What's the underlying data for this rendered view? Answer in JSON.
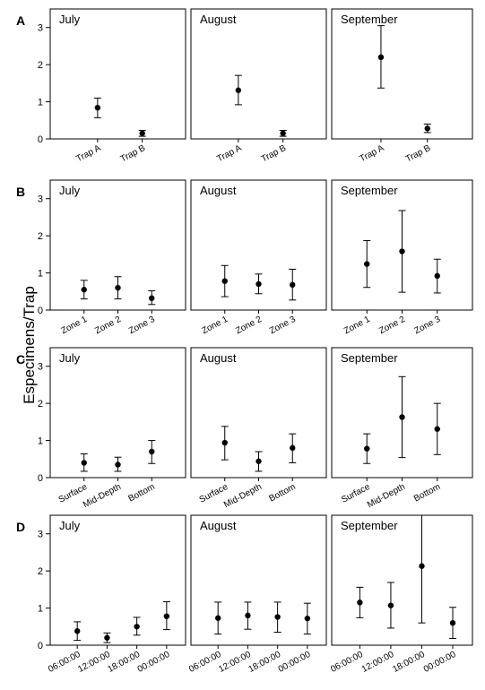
{
  "figure": {
    "ylabel": "Especimens/Trap"
  },
  "chart_data": [
    {
      "type": "scatter",
      "panel": "A",
      "ylim": [
        0,
        3.5
      ],
      "yticks": [
        0,
        1,
        2,
        3
      ],
      "subplots": [
        {
          "title": "July",
          "categories": [
            "Trap A",
            "Trap B"
          ],
          "mean": [
            0.84,
            0.15
          ],
          "lower": [
            0.57,
            0.07
          ],
          "upper": [
            1.1,
            0.23
          ]
        },
        {
          "title": "August",
          "categories": [
            "Trap A",
            "Trap B"
          ],
          "mean": [
            1.31,
            0.15
          ],
          "lower": [
            0.92,
            0.07
          ],
          "upper": [
            1.71,
            0.23
          ]
        },
        {
          "title": "September",
          "categories": [
            "Trap A",
            "Trap B"
          ],
          "mean": [
            2.2,
            0.28
          ],
          "lower": [
            1.37,
            0.17
          ],
          "upper": [
            3.05,
            0.4
          ]
        }
      ]
    },
    {
      "type": "scatter",
      "panel": "B",
      "ylim": [
        0,
        3.5
      ],
      "yticks": [
        0,
        1,
        2,
        3
      ],
      "subplots": [
        {
          "title": "July",
          "categories": [
            "Zone 1",
            "Zone 2",
            "Zone 3"
          ],
          "mean": [
            0.55,
            0.6,
            0.32
          ],
          "lower": [
            0.3,
            0.3,
            0.15
          ],
          "upper": [
            0.8,
            0.9,
            0.52
          ]
        },
        {
          "title": "August",
          "categories": [
            "Zone 1",
            "Zone 2",
            "Zone 3"
          ],
          "mean": [
            0.78,
            0.7,
            0.68
          ],
          "lower": [
            0.36,
            0.44,
            0.27
          ],
          "upper": [
            1.2,
            0.97,
            1.1
          ]
        },
        {
          "title": "September",
          "categories": [
            "Zone 1",
            "Zone 2",
            "Zone 3"
          ],
          "mean": [
            1.24,
            1.58,
            0.92
          ],
          "lower": [
            0.61,
            0.48,
            0.46
          ],
          "upper": [
            1.87,
            2.68,
            1.37
          ]
        }
      ]
    },
    {
      "type": "scatter",
      "panel": "C",
      "ylim": [
        0,
        3.5
      ],
      "yticks": [
        0,
        1,
        2,
        3
      ],
      "subplots": [
        {
          "title": "July",
          "categories": [
            "Surface",
            "Mid-Depth",
            "Bottom"
          ],
          "mean": [
            0.4,
            0.35,
            0.7
          ],
          "lower": [
            0.17,
            0.17,
            0.38
          ],
          "upper": [
            0.64,
            0.55,
            1.0
          ]
        },
        {
          "title": "August",
          "categories": [
            "Surface",
            "Mid-Depth",
            "Bottom"
          ],
          "mean": [
            0.94,
            0.44,
            0.8
          ],
          "lower": [
            0.48,
            0.17,
            0.4
          ],
          "upper": [
            1.38,
            0.7,
            1.18
          ]
        },
        {
          "title": "September",
          "categories": [
            "Surface",
            "Mid-Depth",
            "Bottom"
          ],
          "mean": [
            0.78,
            1.63,
            1.31
          ],
          "lower": [
            0.38,
            0.54,
            0.62
          ],
          "upper": [
            1.18,
            2.72,
            2.0
          ]
        }
      ]
    },
    {
      "type": "scatter",
      "panel": "D",
      "ylim": [
        0,
        3.5
      ],
      "yticks": [
        0,
        1,
        2,
        3
      ],
      "subplots": [
        {
          "title": "July",
          "categories": [
            "06:00:00",
            "12:00:00",
            "18:00:00",
            "00:00:00"
          ],
          "mean": [
            0.38,
            0.2,
            0.5,
            0.78
          ],
          "lower": [
            0.13,
            0.07,
            0.27,
            0.42
          ],
          "upper": [
            0.63,
            0.33,
            0.75,
            1.17
          ]
        },
        {
          "title": "August",
          "categories": [
            "06:00:00",
            "12:00:00",
            "18:00:00",
            "00:00:00"
          ],
          "mean": [
            0.73,
            0.8,
            0.76,
            0.72
          ],
          "lower": [
            0.3,
            0.43,
            0.35,
            0.3
          ],
          "upper": [
            1.16,
            1.16,
            1.16,
            1.13
          ]
        },
        {
          "title": "September",
          "categories": [
            "06:00:00",
            "12:00:00",
            "18:00:00",
            "00:00:00"
          ],
          "mean": [
            1.15,
            1.07,
            2.13,
            0.6
          ],
          "lower": [
            0.74,
            0.46,
            0.6,
            0.18
          ],
          "upper": [
            1.56,
            1.69,
            3.5,
            1.02
          ]
        }
      ]
    }
  ]
}
